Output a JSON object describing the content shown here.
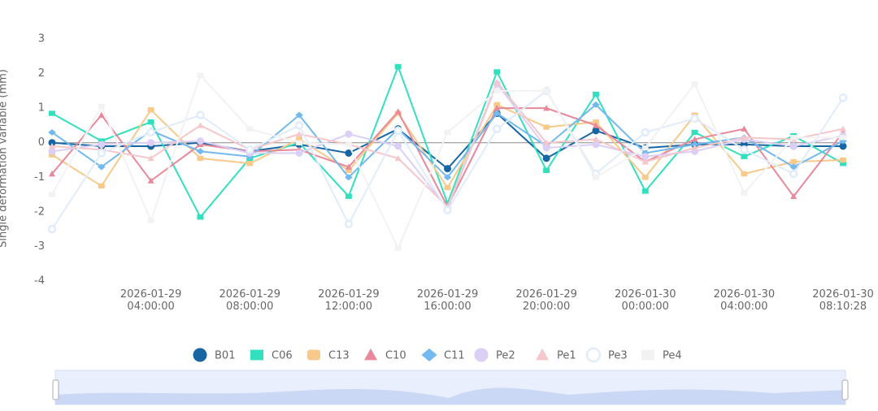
{
  "chart_data": {
    "type": "line",
    "y_label": "Single deformation variable (mm)",
    "categories": [
      null,
      null,
      "2026-01-29 04:00:00",
      null,
      "2026-01-29 08:00:00",
      null,
      "2026-01-29 12:00:00",
      null,
      "2026-01-29 16:00:00",
      null,
      "2026-01-29 20:00:00",
      null,
      "2026-01-30 00:00:00",
      null,
      "2026-01-30 04:00:00",
      null,
      "2026-01-30 08:10:28"
    ],
    "ylim": [
      -4,
      3
    ],
    "yticks": [
      3,
      2,
      1,
      0,
      -1,
      -2,
      -3,
      -4
    ],
    "grid": false,
    "legend": "bottom",
    "series": [
      {
        "name": "B01",
        "color": "#1765a3",
        "symbol": "circle",
        "values": [
          0,
          -0.1,
          -0.1,
          0,
          -0.25,
          -0.05,
          -0.3,
          0.4,
          -0.75,
          0.85,
          -0.45,
          0.35,
          -0.15,
          -0.05,
          -0.05,
          -0.1,
          -0.1
        ]
      },
      {
        "name": "C06",
        "color": "#33e0be",
        "symbol": "rect",
        "values": [
          0.85,
          0.05,
          0.6,
          -2.15,
          -0.45,
          0,
          -1.55,
          2.2,
          -1.75,
          2.05,
          -0.8,
          1.4,
          -1.4,
          0.3,
          -0.4,
          0.2,
          -0.6
        ]
      },
      {
        "name": "C13",
        "color": "#f7c98a",
        "symbol": "roundRect",
        "values": [
          -0.35,
          -1.25,
          0.95,
          -0.45,
          -0.6,
          0.1,
          -0.8,
          0.85,
          -1.3,
          1.1,
          0.45,
          0.6,
          -1.0,
          0.8,
          -0.9,
          -0.55,
          -0.5
        ]
      },
      {
        "name": "C10",
        "color": "#e8889a",
        "symbol": "triangle",
        "values": [
          -0.9,
          0.8,
          -1.1,
          -0.05,
          -0.25,
          -0.2,
          -0.7,
          0.9,
          -1.85,
          1.0,
          1.0,
          0.5,
          -0.55,
          0.1,
          0.4,
          -1.55,
          0.3
        ]
      },
      {
        "name": "C11",
        "color": "#72b9ef",
        "symbol": "diamond",
        "values": [
          0.3,
          -0.7,
          0.35,
          -0.25,
          -0.4,
          0.8,
          -1.0,
          0.4,
          -1.0,
          0.85,
          -0.1,
          1.1,
          -0.3,
          -0.05,
          0.15,
          -0.7,
          0.05
        ]
      },
      {
        "name": "Pe2",
        "color": "#dccff5",
        "symbol": "circle",
        "values": [
          -0.25,
          -0.05,
          0,
          0.05,
          -0.3,
          -0.3,
          0.25,
          -0.1,
          -1.9,
          1.7,
          -0.15,
          -0.05,
          -0.4,
          -0.25,
          0.1,
          -0.1,
          0.2
        ]
      },
      {
        "name": "Pe1",
        "color": "#f5c6ca",
        "symbol": "triangle",
        "values": [
          -0.1,
          -0.2,
          -0.45,
          0.5,
          -0.2,
          0.25,
          -0.05,
          -0.45,
          -1.85,
          1.75,
          0,
          0.1,
          -0.55,
          -0.15,
          0.15,
          0.1,
          0.4
        ]
      },
      {
        "name": "Pe3",
        "color": "#e1ecfb",
        "symbol": "emptyCircle",
        "values": [
          -2.5,
          -0.3,
          0.3,
          0.8,
          -0.2,
          0.5,
          -2.35,
          0.35,
          -1.95,
          0.4,
          1.5,
          -0.9,
          0.3,
          0.7,
          -0.2,
          -0.9,
          1.3
        ]
      },
      {
        "name": "Pe4",
        "color": "#f2f2f2",
        "symbol": "rect",
        "values": [
          -1.5,
          1.05,
          -2.25,
          1.95,
          0.4,
          0,
          -0.05,
          -3.05,
          0.3,
          1.5,
          1.5,
          -1.0,
          -0.15,
          1.7,
          -1.45,
          0.15,
          0.15
        ]
      }
    ]
  }
}
